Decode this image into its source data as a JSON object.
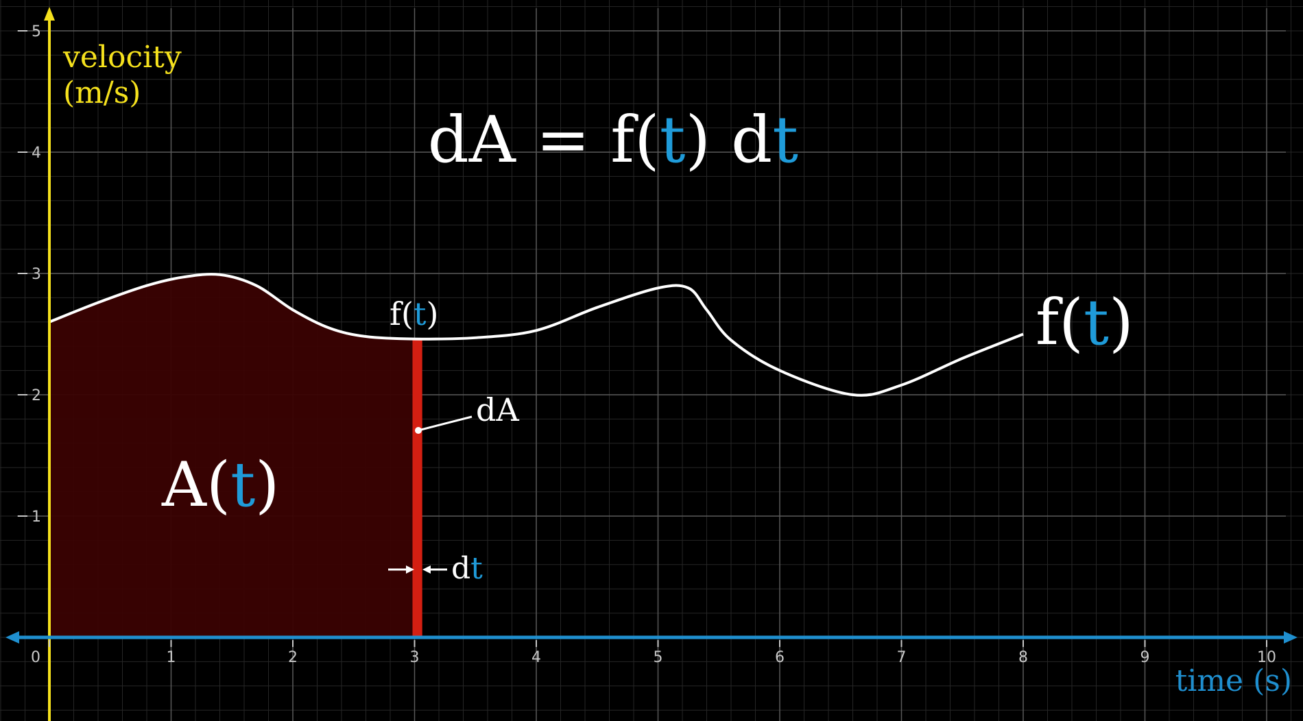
{
  "chart_data": {
    "type": "area",
    "xlabel": "time (s)",
    "ylabel_line1": "velocity",
    "ylabel_line2": "(m/s)",
    "xlim": [
      0,
      10
    ],
    "ylim": [
      0,
      5
    ],
    "x_ticks": [
      "0",
      "1",
      "2",
      "3",
      "4",
      "5",
      "6",
      "7",
      "8",
      "9",
      "10"
    ],
    "y_ticks": [
      "1",
      "2",
      "3",
      "4",
      "5"
    ],
    "grid": true,
    "series": [
      {
        "name": "f(t)",
        "x": [
          0,
          0.4,
          0.8,
          1.1,
          1.4,
          1.7,
          2.0,
          2.3,
          2.6,
          3.0,
          3.5,
          4.0,
          4.5,
          5.0,
          5.25,
          5.4,
          5.6,
          6.0,
          6.6,
          7.0,
          7.5,
          8.0
        ],
        "y": [
          2.6,
          2.76,
          2.9,
          2.97,
          2.99,
          2.9,
          2.7,
          2.55,
          2.48,
          2.46,
          2.47,
          2.53,
          2.72,
          2.88,
          2.88,
          2.7,
          2.45,
          2.2,
          2.0,
          2.08,
          2.3,
          2.5
        ]
      }
    ],
    "shaded_area": {
      "from": 0,
      "to": 3,
      "label": "A(t)"
    },
    "strip": {
      "at": 3,
      "width": 0.08,
      "label": "dA",
      "width_label": "dt",
      "height_label": "f(t)"
    },
    "equation": "dA = f(t) dt",
    "curve_label": "f(t)"
  },
  "colors": {
    "background": "#000000",
    "curve": "#ffffff",
    "area": "#3a0202",
    "strip": "#d41f12",
    "x_axis": "#1f8fcf",
    "y_axis": "#f5e11d",
    "variable_t": "#1f9bd9",
    "grid_major": "#5a5a5a",
    "grid_minor": "#262626"
  }
}
